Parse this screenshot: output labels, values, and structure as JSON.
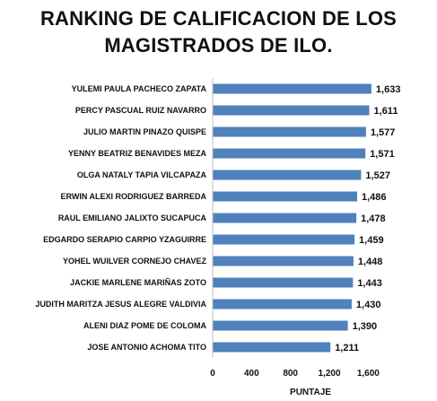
{
  "chart_data": {
    "type": "bar",
    "orientation": "horizontal",
    "title_lines": [
      "RANKING DE CALIFICACION DE  LOS",
      "MAGISTRADOS  DE ILO."
    ],
    "xlabel": "PUNTAJE",
    "ylabel": "",
    "categories": [
      "YULEMI PAULA PACHECO ZAPATA",
      "PERCY PASCUAL RUIZ NAVARRO",
      "JULIO MARTIN PINAZO QUISPE",
      "YENNY BEATRIZ BENAVIDES MEZA",
      "OLGA NATALY TAPIA VILCAPAZA",
      "ERWIN ALEXI RODRIGUEZ BARREDA",
      "RAUL EMILIANO JALIXTO SUCAPUCA",
      "EDGARDO SERAPIO CARPIO YZAGUIRRE",
      "YOHEL WUILVER CORNEJO CHAVEZ",
      "JACKIE MARLENE MARIÑAS ZOTO",
      "JUDITH MARITZA JESUS ALEGRE VALDIVIA",
      "ALENI DIAZ POME DE COLOMA",
      "JOSE ANTONIO ACHOMA TITO"
    ],
    "values": [
      1633,
      1611,
      1577,
      1571,
      1527,
      1486,
      1478,
      1459,
      1448,
      1443,
      1430,
      1390,
      1211
    ],
    "value_labels": [
      "1,633",
      "1,611",
      "1,577",
      "1,571",
      "1,527",
      "1,486",
      "1,478",
      "1,459",
      "1,448",
      "1,443",
      "1,430",
      "1,390",
      "1,211"
    ],
    "xlim": [
      0,
      1800
    ],
    "xticks": [
      0,
      400,
      800,
      1200,
      1600
    ],
    "xtick_labels": [
      "0",
      "400",
      "800",
      "1,200",
      "1,600"
    ],
    "grid": false,
    "legend": "none",
    "bar_color": "#4f81bd"
  }
}
